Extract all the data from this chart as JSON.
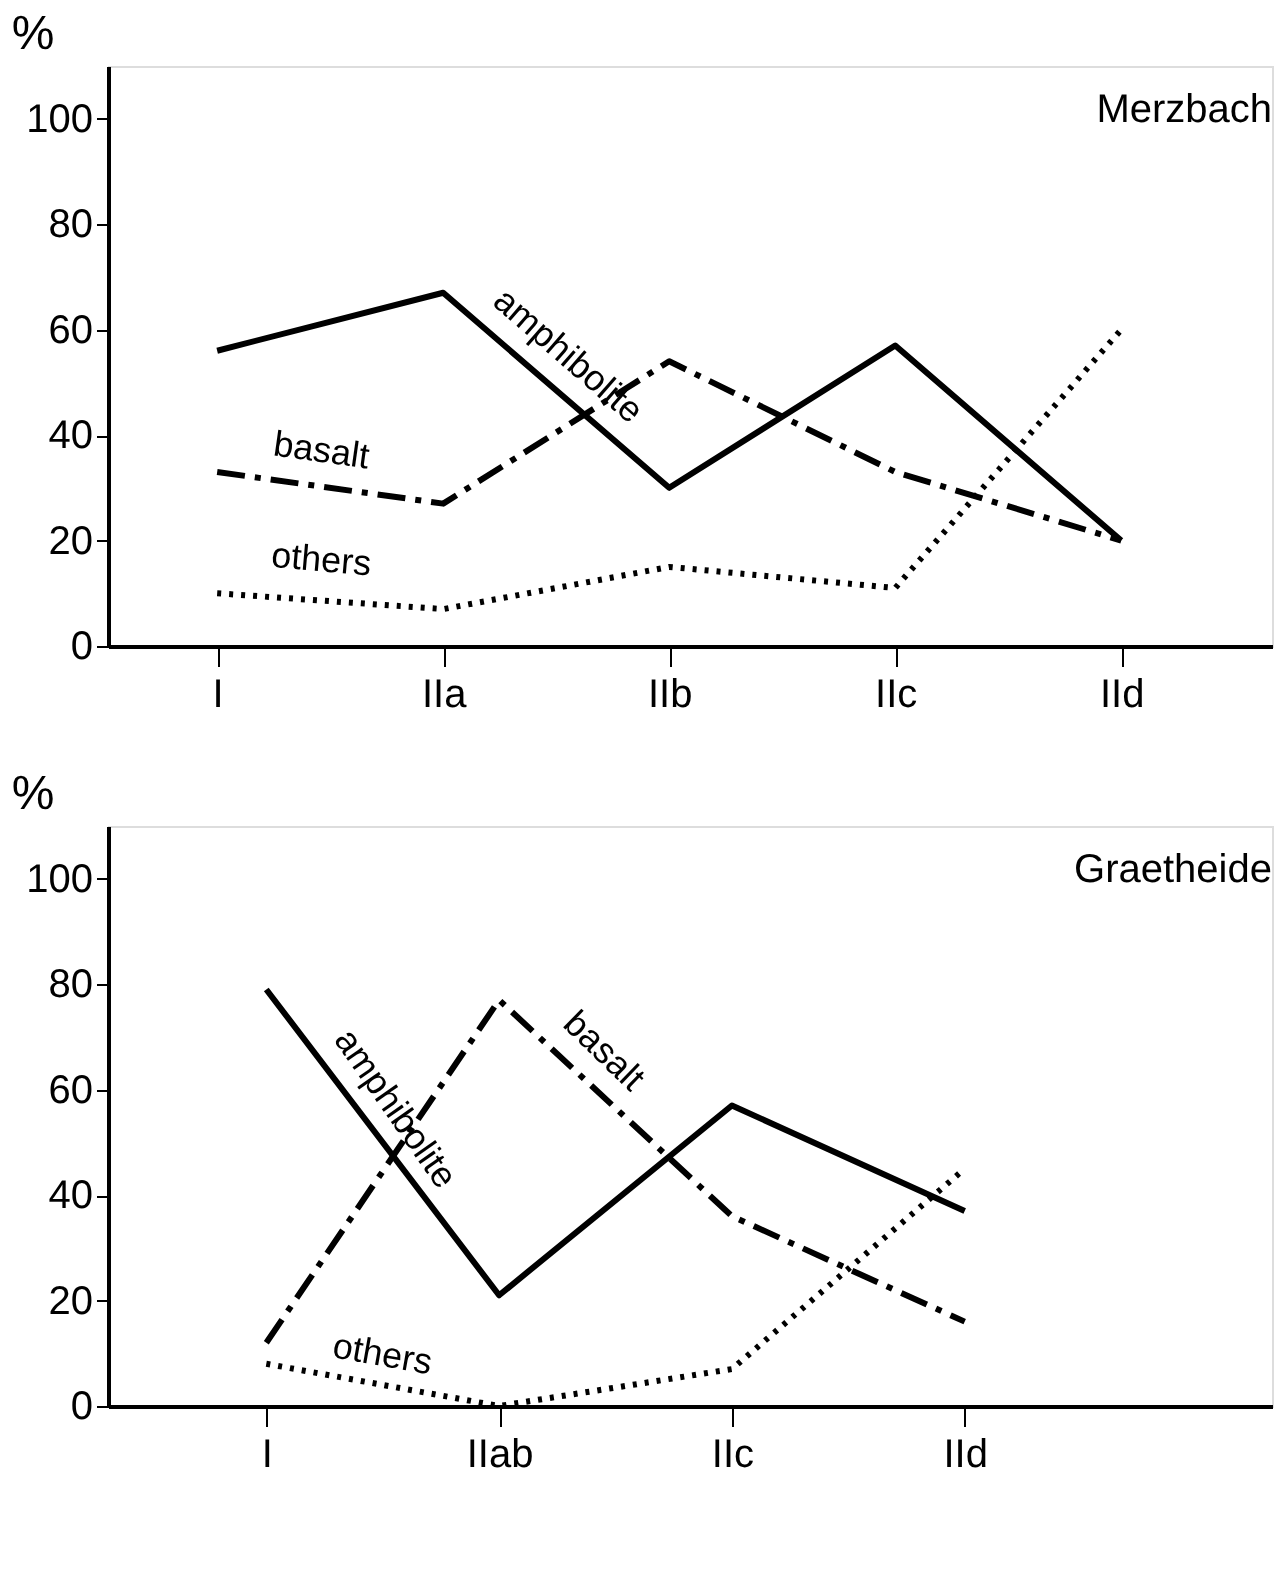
{
  "chart_data": [
    {
      "type": "line",
      "title": "Merzbach",
      "ylabel": "%",
      "categories": [
        "I",
        "IIa",
        "IIb",
        "IIc",
        "IId"
      ],
      "ylim": [
        0,
        110
      ],
      "yticks": [
        0,
        20,
        40,
        60,
        80,
        100
      ],
      "grid": false,
      "legend": false,
      "marker": "none",
      "series": [
        {
          "name": "amphibolite",
          "color": "#000000",
          "line_style": "solid",
          "values": [
            56,
            67,
            30,
            57,
            20
          ]
        },
        {
          "name": "basalt",
          "color": "#000000",
          "line_style": "dashed",
          "values": [
            33,
            27,
            54,
            33,
            20
          ]
        },
        {
          "name": "others",
          "color": "#000000",
          "line_style": "dotted",
          "values": [
            10,
            7,
            15,
            11,
            60
          ]
        }
      ]
    },
    {
      "type": "line",
      "title": "Graetheide",
      "ylabel": "%",
      "categories": [
        "I",
        "IIab",
        "IIc",
        "IId"
      ],
      "ylim": [
        0,
        110
      ],
      "yticks": [
        0,
        20,
        40,
        60,
        80,
        100
      ],
      "grid": false,
      "legend": false,
      "marker": "none",
      "series": [
        {
          "name": "amphibolite",
          "color": "#000000",
          "line_style": "solid",
          "values": [
            79,
            21,
            57,
            37
          ]
        },
        {
          "name": "basalt",
          "color": "#000000",
          "line_style": "dashed",
          "values": [
            12,
            77,
            36,
            16
          ]
        },
        {
          "name": "others",
          "color": "#000000",
          "line_style": "dotted",
          "values": [
            8,
            0,
            7,
            45
          ]
        }
      ]
    }
  ]
}
